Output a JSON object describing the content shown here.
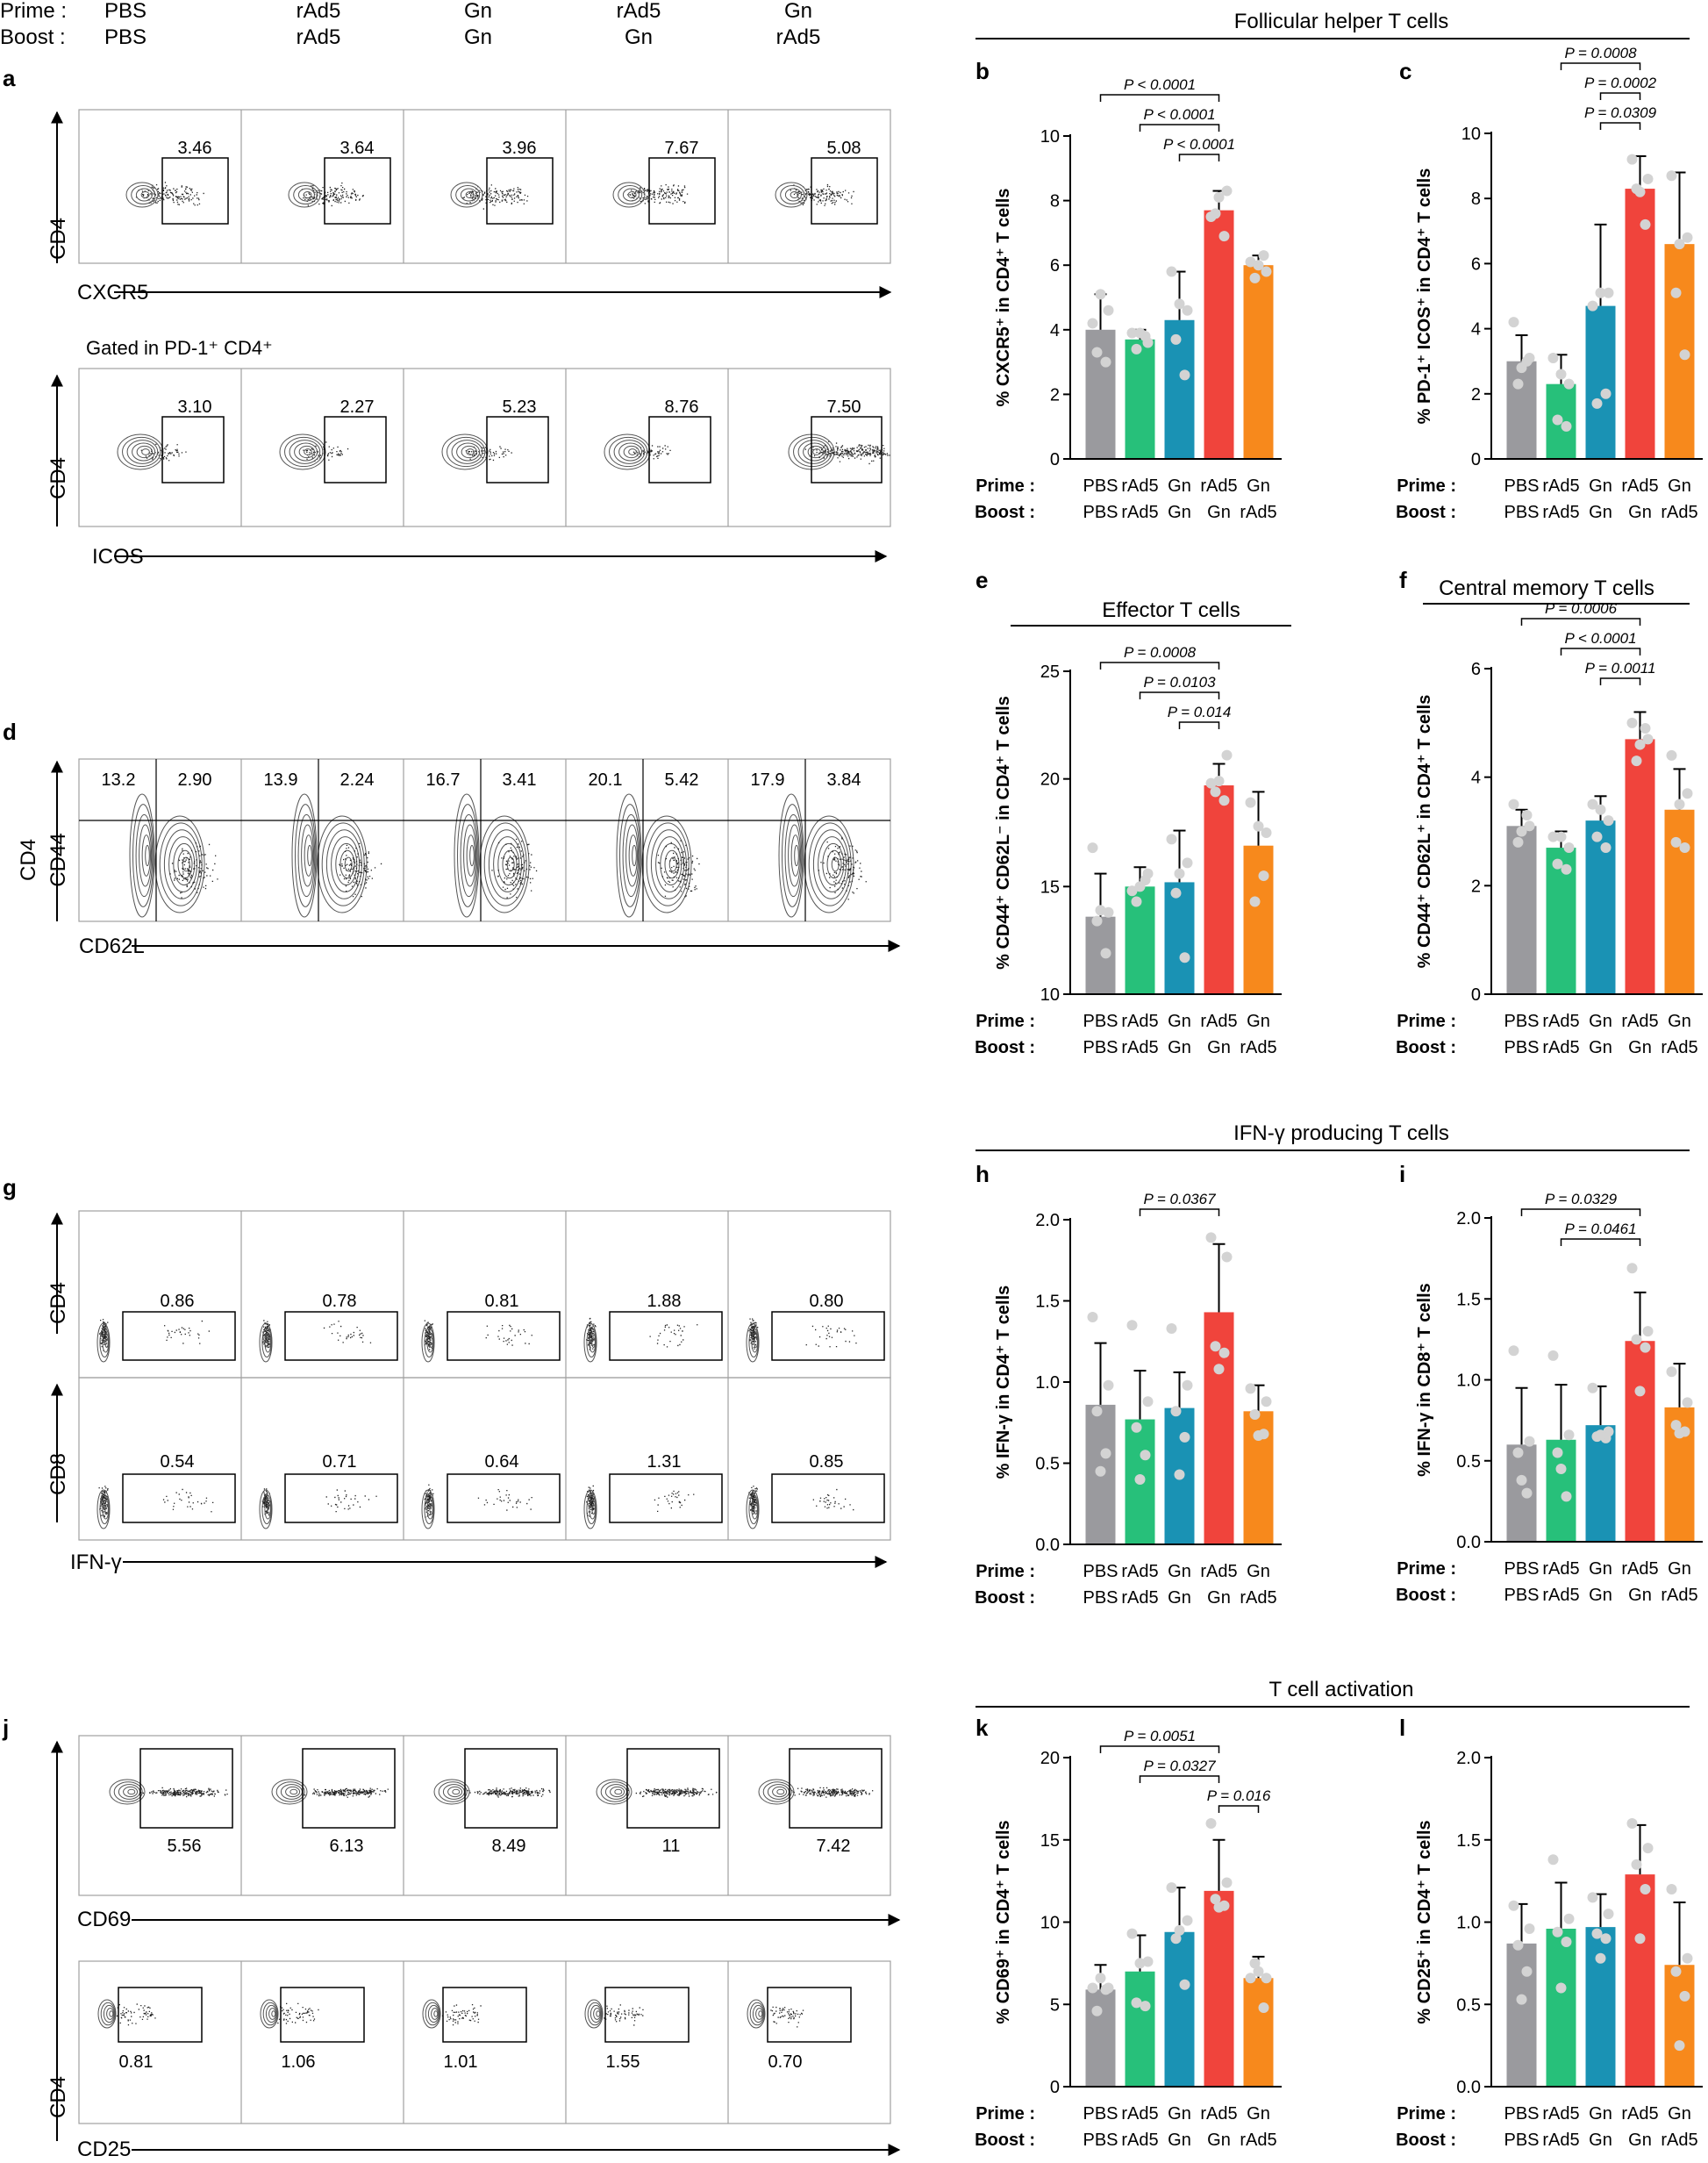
{
  "header": {
    "prime_label": "Prime :",
    "boost_label": "Boost :",
    "prime_groups": [
      "PBS",
      "rAd5",
      "Gn",
      "rAd5",
      "Gn"
    ],
    "boost_groups": [
      "PBS",
      "rAd5",
      "Gn",
      "Gn",
      "rAd5"
    ]
  },
  "panel_letters": {
    "a": "a",
    "b": "b",
    "c": "c",
    "d": "d",
    "e": "e",
    "f": "f",
    "g": "g",
    "h": "h",
    "i": "i",
    "j": "j",
    "k": "k",
    "l": "l"
  },
  "section_titles": {
    "tfh": "Follicular helper T cells",
    "effector": "Effector T cells",
    "central_memory": "Central memory T cells",
    "ifn": "IFN-γ producing T cells",
    "activation": "T cell activation"
  },
  "flow": {
    "a1": {
      "y_label": "CD4",
      "x_label": "CXCR5",
      "gates": [
        "3.46",
        "3.64",
        "3.96",
        "7.67",
        "5.08"
      ]
    },
    "a2": {
      "subtitle": "Gated in PD-1⁺ CD4⁺",
      "y_label": "CD4",
      "x_label": "ICOS",
      "gates": [
        "3.10",
        "2.27",
        "5.23",
        "8.76",
        "7.50"
      ]
    },
    "d": {
      "y_label_1": "CD4",
      "y_label_2": "CD44",
      "x_label": "CD62L",
      "left_values": [
        "13.2",
        "13.9",
        "16.7",
        "20.1",
        "17.9"
      ],
      "right_values": [
        "2.90",
        "2.24",
        "3.41",
        "5.42",
        "3.84"
      ]
    },
    "g1": {
      "y_label": "CD4",
      "gates": [
        "0.86",
        "0.78",
        "0.81",
        "1.88",
        "0.80"
      ]
    },
    "g2": {
      "y_label": "CD8",
      "x_label": "IFN-γ",
      "gates": [
        "0.54",
        "0.71",
        "0.64",
        "1.31",
        "0.85"
      ]
    },
    "j1": {
      "x_label": "CD69",
      "gates": [
        "5.56",
        "6.13",
        "8.49",
        "11",
        "7.42"
      ]
    },
    "j2": {
      "y_label": "CD4",
      "x_label": "CD25",
      "gates": [
        "0.81",
        "1.06",
        "1.01",
        "1.55",
        "0.70"
      ]
    }
  },
  "colors": {
    "PBS": "#9a9a9e",
    "rAd5_rAd5": "#27c07a",
    "Gn_Gn": "#1a92b4",
    "rAd5_Gn": "#f0443c",
    "Gn_rAd5": "#f7891c",
    "dots": "#d3d3d3",
    "axis": "#000000"
  },
  "chart_data": [
    {
      "panel": "b",
      "type": "bar",
      "categories": [
        "PBS/PBS",
        "rAd5/rAd5",
        "Gn/Gn",
        "rAd5/Gn",
        "Gn/rAd5"
      ],
      "ylabel": "% CXCR5⁺ in CD4⁺ T cells",
      "ylim": [
        0,
        10
      ],
      "ticks": [
        "0",
        "2",
        "4",
        "6",
        "8",
        "10"
      ],
      "values": [
        4.0,
        3.7,
        4.3,
        7.7,
        6.0
      ],
      "errors": [
        1.1,
        0.3,
        1.5,
        0.6,
        0.3
      ],
      "points": [
        [
          4.2,
          4.6,
          3.3,
          3.0,
          5.1
        ],
        [
          3.9,
          3.6,
          3.4,
          3.8,
          3.9
        ],
        [
          5.8,
          4.6,
          3.7,
          2.6,
          4.8
        ],
        [
          7.5,
          8.3,
          7.6,
          6.9,
          8.1
        ],
        [
          6.1,
          5.8,
          5.6,
          6.3,
          6.0
        ]
      ],
      "significance": [
        {
          "from": 0,
          "to": 3,
          "text": "P < 0.0001"
        },
        {
          "from": 1,
          "to": 3,
          "text": "P < 0.0001"
        },
        {
          "from": 2,
          "to": 3,
          "text": "P < 0.0001"
        }
      ]
    },
    {
      "panel": "c",
      "type": "bar",
      "categories": [
        "PBS/PBS",
        "rAd5/rAd5",
        "Gn/Gn",
        "rAd5/Gn",
        "Gn/rAd5"
      ],
      "ylabel": "% PD-1⁺ ICOS⁺ in CD4⁺ T cells",
      "ylim": [
        0,
        10
      ],
      "ticks": [
        "0",
        "2",
        "4",
        "6",
        "8",
        "10"
      ],
      "values": [
        3.0,
        2.3,
        4.7,
        8.3,
        6.6
      ],
      "errors": [
        0.8,
        0.9,
        2.5,
        1.0,
        2.2
      ],
      "points": [
        [
          4.2,
          3.1,
          2.3,
          3.0,
          2.8
        ],
        [
          3.1,
          2.3,
          1.2,
          1.0,
          2.6
        ],
        [
          4.7,
          5.1,
          1.7,
          2.0,
          5.1
        ],
        [
          9.2,
          8.6,
          8.3,
          7.2,
          8.2
        ],
        [
          8.7,
          6.8,
          5.1,
          3.2,
          6.6
        ]
      ],
      "significance": [
        {
          "from": 1,
          "to": 3,
          "text": "P = 0.0008"
        },
        {
          "from": 2,
          "to": 3,
          "text": "P = 0.0002"
        },
        {
          "from": 2,
          "to": 3,
          "text": "P = 0.0309"
        }
      ]
    },
    {
      "panel": "e",
      "type": "bar",
      "categories": [
        "PBS/PBS",
        "rAd5/rAd5",
        "Gn/Gn",
        "rAd5/Gn",
        "Gn/rAd5"
      ],
      "ylabel": "% CD44⁺ CD62L⁻ in CD4⁺ T cells",
      "ylim": [
        10,
        25
      ],
      "ticks": [
        "10",
        "15",
        "20",
        "25"
      ],
      "values": [
        13.6,
        15.0,
        15.2,
        19.7,
        16.9
      ],
      "errors": [
        2.0,
        0.9,
        2.4,
        1.0,
        2.5
      ],
      "points": [
        [
          16.8,
          13.8,
          13.4,
          11.9,
          13.9
        ],
        [
          14.8,
          15.6,
          14.3,
          15.3,
          15.0
        ],
        [
          17.2,
          16.1,
          14.7,
          11.7,
          15.6
        ],
        [
          19.8,
          21.1,
          19.4,
          19.0,
          19.9
        ],
        [
          18.9,
          17.5,
          14.3,
          15.5,
          17.8
        ]
      ],
      "significance": [
        {
          "from": 0,
          "to": 3,
          "text": "P = 0.0008"
        },
        {
          "from": 1,
          "to": 3,
          "text": "P = 0.0103"
        },
        {
          "from": 2,
          "to": 3,
          "text": "P = 0.014"
        }
      ]
    },
    {
      "panel": "f",
      "type": "bar",
      "categories": [
        "PBS/PBS",
        "rAd5/rAd5",
        "Gn/Gn",
        "rAd5/Gn",
        "Gn/rAd5"
      ],
      "ylabel": "% CD44⁺ CD62L⁺ in CD4⁺ T cells",
      "ylim": [
        0,
        6
      ],
      "ticks": [
        "0",
        "2",
        "4",
        "6"
      ],
      "values": [
        3.1,
        2.7,
        3.2,
        4.7,
        3.4
      ],
      "errors": [
        0.3,
        0.3,
        0.45,
        0.5,
        0.75
      ],
      "points": [
        [
          3.5,
          3.1,
          2.8,
          3.3,
          3.0
        ],
        [
          2.9,
          2.7,
          2.4,
          2.3,
          2.9
        ],
        [
          3.5,
          3.2,
          2.9,
          2.7,
          3.4
        ],
        [
          5.0,
          4.7,
          4.3,
          4.9,
          4.6
        ],
        [
          4.4,
          3.7,
          2.8,
          2.7,
          3.5
        ]
      ],
      "significance": [
        {
          "from": 0,
          "to": 3,
          "text": "P = 0.0006"
        },
        {
          "from": 1,
          "to": 3,
          "text": "P < 0.0001"
        },
        {
          "from": 2,
          "to": 3,
          "text": "P = 0.0011"
        }
      ]
    },
    {
      "panel": "h",
      "type": "bar",
      "categories": [
        "PBS/PBS",
        "rAd5/rAd5",
        "Gn/Gn",
        "rAd5/Gn",
        "Gn/rAd5"
      ],
      "ylabel": "% IFN-γ in CD4⁺ T cells",
      "ylim": [
        0,
        2
      ],
      "ticks": [
        "0.0",
        "0.5",
        "1.0",
        "1.5",
        "2.0"
      ],
      "values": [
        0.86,
        0.77,
        0.84,
        1.43,
        0.82
      ],
      "errors": [
        0.38,
        0.3,
        0.22,
        0.42,
        0.16
      ],
      "points": [
        [
          1.4,
          0.98,
          0.82,
          0.56,
          0.45
        ],
        [
          1.35,
          0.88,
          0.72,
          0.55,
          0.4
        ],
        [
          1.33,
          0.98,
          0.82,
          0.66,
          0.43
        ],
        [
          1.89,
          1.77,
          1.22,
          1.18,
          1.08
        ],
        [
          0.96,
          0.88,
          0.8,
          0.68,
          0.67
        ]
      ],
      "significance": [
        {
          "from": 1,
          "to": 3,
          "text": "P = 0.0367"
        }
      ]
    },
    {
      "panel": "i",
      "type": "bar",
      "categories": [
        "PBS/PBS",
        "rAd5/rAd5",
        "Gn/Gn",
        "rAd5/Gn",
        "Gn/rAd5"
      ],
      "ylabel": "% IFN-γ in CD8⁺ T cells",
      "ylim": [
        0,
        2
      ],
      "ticks": [
        "0.0",
        "0.5",
        "1.0",
        "1.5",
        "2.0"
      ],
      "values": [
        0.6,
        0.63,
        0.72,
        1.24,
        0.83
      ],
      "errors": [
        0.35,
        0.34,
        0.24,
        0.3,
        0.27
      ],
      "points": [
        [
          1.18,
          0.62,
          0.55,
          0.3,
          0.38
        ],
        [
          1.15,
          0.66,
          0.55,
          0.28,
          0.45
        ],
        [
          0.95,
          0.68,
          0.65,
          0.64,
          0.66
        ],
        [
          1.69,
          1.3,
          1.25,
          1.2,
          0.93
        ],
        [
          1.05,
          0.86,
          0.72,
          0.68,
          0.67
        ]
      ],
      "significance": [
        {
          "from": 0,
          "to": 3,
          "text": "P = 0.0329"
        },
        {
          "from": 1,
          "to": 3,
          "text": "P = 0.0461"
        }
      ]
    },
    {
      "panel": "k",
      "type": "bar",
      "categories": [
        "PBS/PBS",
        "rAd5/rAd5",
        "Gn/Gn",
        "rAd5/Gn",
        "Gn/rAd5"
      ],
      "ylabel": "% CD69⁺ in CD4⁺ T cells",
      "ylim": [
        0,
        20
      ],
      "ticks": [
        "0",
        "5",
        "10",
        "15",
        "20"
      ],
      "values": [
        5.9,
        7.0,
        9.4,
        11.9,
        6.6
      ],
      "errors": [
        1.5,
        2.2,
        2.7,
        3.1,
        1.3
      ],
      "points": [
        [
          6.0,
          6.0,
          4.6,
          5.9,
          6.6
        ],
        [
          9.3,
          7.6,
          5.1,
          4.9,
          7.5
        ],
        [
          12.1,
          10.1,
          9.0,
          6.2,
          9.5
        ],
        [
          16.0,
          12.4,
          11.4,
          11.0,
          10.9
        ],
        [
          6.6,
          6.6,
          7.5,
          4.8,
          7.0
        ]
      ],
      "significance": [
        {
          "from": 0,
          "to": 3,
          "text": "P = 0.0051"
        },
        {
          "from": 1,
          "to": 3,
          "text": "P = 0.0327"
        },
        {
          "from": 3,
          "to": 4,
          "text": "P = 0.016"
        }
      ]
    },
    {
      "panel": "l",
      "type": "bar",
      "categories": [
        "PBS/PBS",
        "rAd5/rAd5",
        "Gn/Gn",
        "rAd5/Gn",
        "Gn/rAd5"
      ],
      "ylabel": "% CD25⁺ in CD4⁺ T cells",
      "ylim": [
        0,
        2
      ],
      "ticks": [
        "0.0",
        "0.5",
        "1.0",
        "1.5",
        "2.0"
      ],
      "values": [
        0.87,
        0.96,
        0.97,
        1.29,
        0.74
      ],
      "errors": [
        0.24,
        0.28,
        0.2,
        0.3,
        0.38
      ],
      "points": [
        [
          1.1,
          0.96,
          0.86,
          0.7,
          0.53
        ],
        [
          1.38,
          1.02,
          0.94,
          0.88,
          0.6
        ],
        [
          1.15,
          1.05,
          0.93,
          0.9,
          0.78
        ],
        [
          1.6,
          1.45,
          1.35,
          1.2,
          0.9
        ],
        [
          1.2,
          0.78,
          0.7,
          0.55,
          0.25
        ]
      ],
      "significance": []
    }
  ]
}
